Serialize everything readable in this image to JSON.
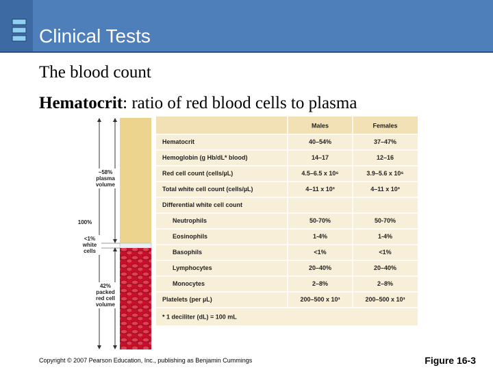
{
  "header": {
    "title": "Clinical Tests"
  },
  "body": {
    "line1": "The blood count",
    "line2_bold": "Hematocrit",
    "line2_rest": ": ratio of red blood cells to plasma"
  },
  "figure": {
    "plasma_label": [
      "~58%",
      "plasma",
      "volume"
    ],
    "total_label": "100%",
    "white_label": [
      "<1%",
      "white",
      "cells"
    ],
    "red_label": [
      "42%",
      "packed",
      "red cell",
      "volume"
    ]
  },
  "table": {
    "columns": [
      "Males",
      "Females"
    ],
    "rows": [
      [
        "Hematocrit",
        "40–54%",
        "37–47%"
      ],
      [
        "Hemoglobin (g Hb/dL* blood)",
        "14–17",
        "12–16"
      ],
      [
        "Red cell count (cells/µL)",
        "4.5–6.5 x 10⁶",
        "3.9–5.6 x 10⁶"
      ],
      [
        "Total white cell count (cells/µL)",
        "4–11 x 10³",
        "4–11 x 10³"
      ],
      [
        "Differential white cell count"
      ],
      [
        "Neutrophils",
        "50-70%",
        "50-70%"
      ],
      [
        "Eosinophils",
        "1-4%",
        "1-4%"
      ],
      [
        "Basophils",
        "<1%",
        "<1%"
      ],
      [
        "Lymphocytes",
        "20–40%",
        "20–40%"
      ],
      [
        "Monocytes",
        "2–8%",
        "2–8%"
      ],
      [
        "Platelets (per µL)",
        "200–500 x 10³",
        "200–500 x 10³"
      ]
    ],
    "footnote": "* 1 deciliter (dL) = 100 mL"
  },
  "footer": {
    "copyright": "Copyright © 2007 Pearson Education, Inc., publishing as Benjamin Cummings",
    "figure": "Figure 16-3"
  }
}
